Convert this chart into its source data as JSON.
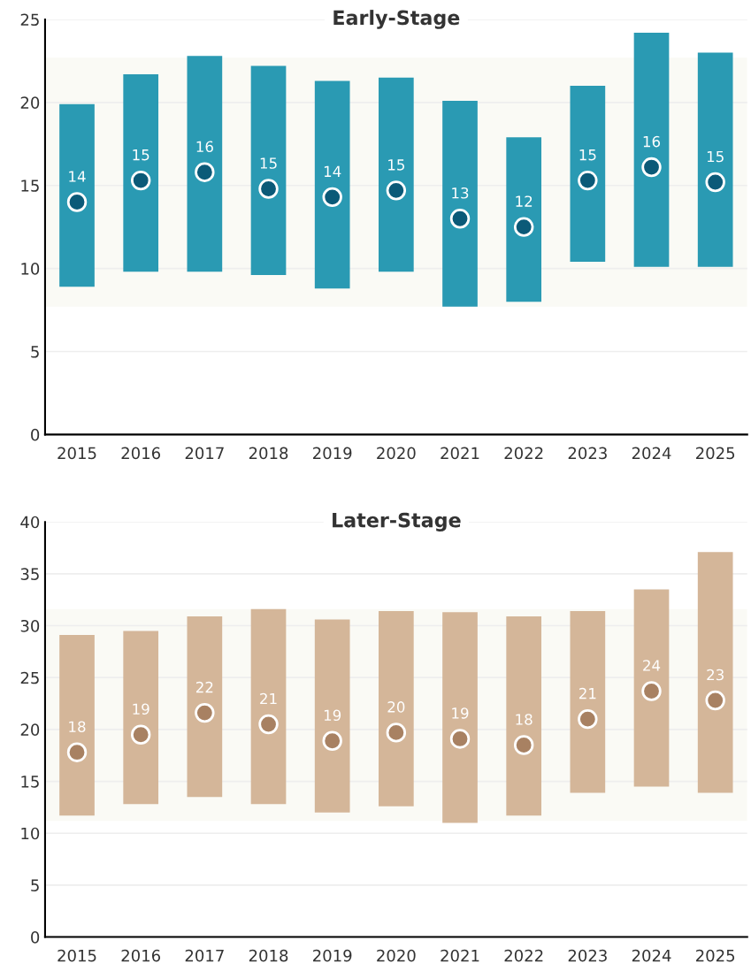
{
  "chart_data": [
    {
      "type": "bar",
      "title": "Early-Stage",
      "categories": [
        "2015",
        "2016",
        "2017",
        "2018",
        "2019",
        "2020",
        "2021",
        "2022",
        "2023",
        "2024",
        "2025"
      ],
      "series": [
        {
          "color": "#2a9ab3",
          "base": [
            8.9,
            9.8,
            9.8,
            9.6,
            8.8,
            9.8,
            7.7,
            8.0,
            10.4,
            10.1,
            10.1
          ],
          "values": [
            11.0,
            11.9,
            13.0,
            12.6,
            12.5,
            11.7,
            12.4,
            9.9,
            10.6,
            14.1,
            12.9
          ]
        },
        {
          "type": "scatter",
          "color": "#0b5a78",
          "marker": "circle",
          "values": [
            14.0,
            15.3,
            15.8,
            14.8,
            14.3,
            14.7,
            13.0,
            12.5,
            15.3,
            16.1,
            15.2
          ],
          "value_labels": [
            "14",
            "15",
            "16",
            "15",
            "14",
            "15",
            "13",
            "12",
            "15",
            "16",
            "15"
          ]
        }
      ],
      "ylim": [
        0,
        25
      ],
      "yticks": [
        0,
        5,
        10,
        15,
        20,
        25
      ],
      "grid": "y",
      "bands": [
        {
          "axis": "y",
          "from": 7.7,
          "to": 22.7,
          "color": "#fafaf5"
        }
      ]
    },
    {
      "type": "bar",
      "title": "Later-Stage",
      "categories": [
        "2015",
        "2016",
        "2017",
        "2018",
        "2019",
        "2020",
        "2021",
        "2022",
        "2023",
        "2024",
        "2025"
      ],
      "series": [
        {
          "color": "#d4b699",
          "base": [
            11.7,
            12.8,
            13.5,
            12.8,
            12.0,
            12.6,
            11.0,
            11.7,
            13.9,
            14.5,
            13.9
          ],
          "values": [
            17.4,
            16.7,
            17.4,
            18.8,
            18.6,
            18.8,
            20.3,
            19.2,
            17.5,
            19.0,
            23.2
          ]
        },
        {
          "type": "scatter",
          "color": "#a88162",
          "marker": "circle",
          "values": [
            17.8,
            19.5,
            21.6,
            20.5,
            18.9,
            19.7,
            19.1,
            18.5,
            21.0,
            23.7,
            22.8
          ],
          "value_labels": [
            "18",
            "19",
            "22",
            "21",
            "19",
            "20",
            "19",
            "18",
            "21",
            "24",
            "23"
          ]
        }
      ],
      "ylim": [
        0,
        40
      ],
      "yticks": [
        0,
        5,
        10,
        15,
        20,
        25,
        30,
        35,
        40
      ],
      "grid": "y",
      "bands": [
        {
          "axis": "y",
          "from": 11.2,
          "to": 31.6,
          "color": "#fafaf5"
        }
      ]
    }
  ]
}
